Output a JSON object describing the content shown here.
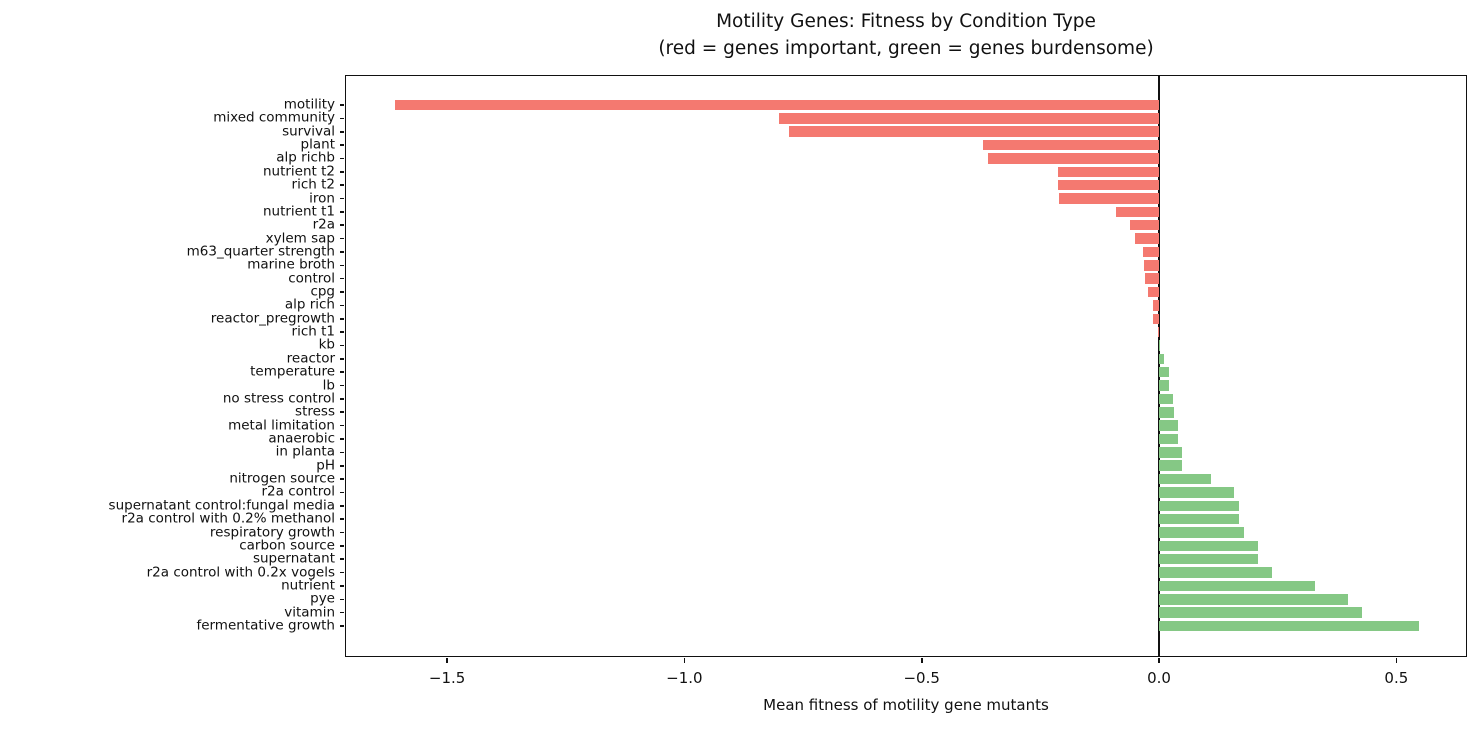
{
  "title": {
    "line1": "Motility Genes: Fitness by Condition Type",
    "line2": "(red = genes important, green = genes burdensome)"
  },
  "xlabel": "Mean fitness of motility gene mutants",
  "chart_data": {
    "type": "bar",
    "orientation": "horizontal",
    "title": "Motility Genes: Fitness by Condition Type",
    "subtitle": "(red = genes important, green = genes burdensome)",
    "xlabel": "Mean fitness of motility gene mutants",
    "ylabel": "",
    "xlim": [
      -1.713,
      0.651
    ],
    "xticks": [
      -1.5,
      -1.0,
      -0.5,
      0.0,
      0.5
    ],
    "xtick_labels": [
      "−1.5",
      "−1.0",
      "−0.5",
      "0.0",
      "0.5"
    ],
    "grid": false,
    "legend": "none",
    "colors": {
      "negative_bar": "#f47970",
      "positive_bar": "#85c885",
      "axis": "#111111",
      "zero_line": "#111111"
    },
    "categories": [
      "motility",
      "mixed community",
      "survival",
      "plant",
      "alp richb",
      "nutrient t2",
      "rich t2",
      "iron",
      "nutrient t1",
      "r2a",
      "xylem sap",
      "m63_quarter strength",
      "marine broth",
      "control",
      "cpg",
      "alp rich",
      "reactor_pregrowth",
      "rich t1",
      "kb",
      "reactor",
      "temperature",
      "lb",
      "no stress control",
      "stress",
      "metal limitation",
      "anaerobic",
      "in planta",
      "pH",
      "nitrogen source",
      "r2a control",
      "supernatant control:fungal media",
      "r2a control with 0.2% methanol",
      "respiratory growth",
      "carbon source",
      "supernatant",
      "r2a control with 0.2x vogels",
      "nutrient",
      "pye",
      "vitamin",
      "fermentative growth"
    ],
    "values": [
      -1.61,
      -0.8,
      -0.78,
      -0.37,
      -0.36,
      -0.213,
      -0.212,
      -0.211,
      -0.091,
      -0.062,
      -0.051,
      -0.034,
      -0.032,
      -0.03,
      -0.024,
      -0.013,
      -0.012,
      -0.002,
      0.002,
      0.011,
      0.021,
      0.021,
      0.03,
      0.032,
      0.04,
      0.039,
      0.048,
      0.048,
      0.11,
      0.158,
      0.168,
      0.168,
      0.179,
      0.209,
      0.209,
      0.238,
      0.329,
      0.398,
      0.428,
      0.548
    ]
  }
}
